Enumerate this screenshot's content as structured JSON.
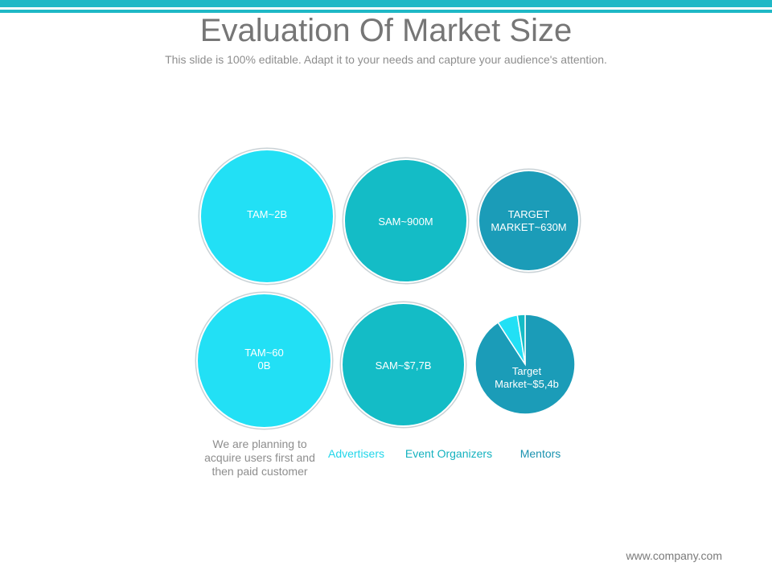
{
  "slide": {
    "title": "Evaluation Of Market Size",
    "subtitle": "This slide is 100% editable. Adapt it to your needs and capture your audience's attention.",
    "footer_url": "www.company.com"
  },
  "colors": {
    "accent_bar": "#1fb8c6",
    "light_cyan": "#22e0f5",
    "teal": "#14bcc6",
    "dark_teal": "#1b9cb8",
    "text_gray": "#8e8e8e"
  },
  "bubbles": {
    "tam_users": {
      "label": "TAM~2B"
    },
    "sam_users": {
      "label": "SAM~900M"
    },
    "target_users": {
      "label": "TARGET\nMARKET~630M"
    },
    "tam_revenue": {
      "label": "TAM~60\n0B"
    },
    "sam_revenue": {
      "label": "SAM~$7,7B"
    }
  },
  "pie": {
    "label": "Target\nMarket~$5,4b",
    "slices": [
      {
        "color": "#22e0f5"
      },
      {
        "color": "#14bcc6"
      },
      {
        "color": "#1b9cb8"
      }
    ]
  },
  "legend": {
    "note": "We are planning to\nacquire users first and\nthen paid customer",
    "advertisers": "Advertisers",
    "event_organizers": "Event Organizers",
    "mentors": "Mentors"
  }
}
